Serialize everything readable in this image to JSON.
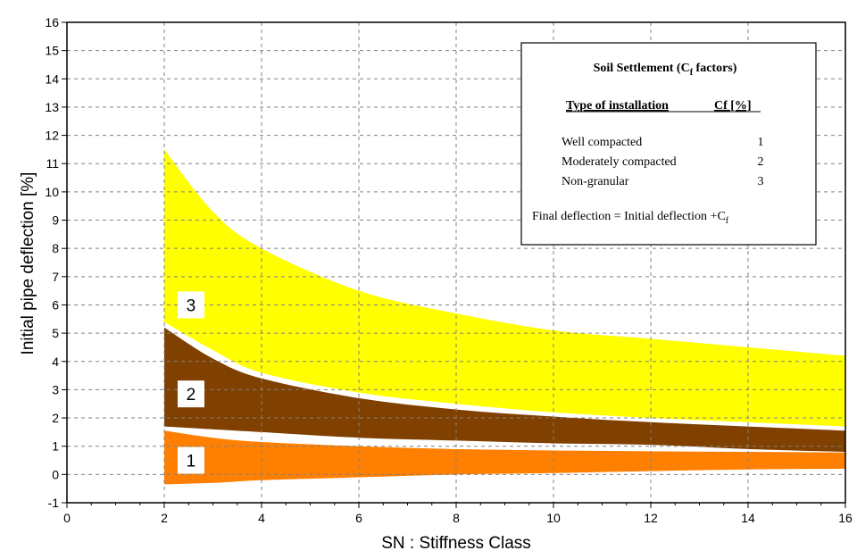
{
  "chart_data": {
    "type": "area",
    "xlabel": "SN : Stiffness Class",
    "ylabel": "Initial pipe deflection  [%]",
    "xlim": [
      0,
      16
    ],
    "ylim": [
      -1,
      16
    ],
    "x_ticks": [
      "0",
      "2",
      "4",
      "6",
      "8",
      "10",
      "12",
      "14",
      "16"
    ],
    "y_ticks": [
      "-1",
      "0",
      "1",
      "2",
      "3",
      "4",
      "5",
      "6",
      "7",
      "8",
      "9",
      "10",
      "11",
      "12",
      "13",
      "14",
      "15",
      "16"
    ],
    "grid": true,
    "x": [
      2,
      3,
      4,
      6,
      8,
      10,
      12,
      14,
      16
    ],
    "bands": [
      {
        "label": "1",
        "color": "#ff8000",
        "lower": [
          -0.35,
          -0.3,
          -0.2,
          -0.1,
          0.0,
          0.05,
          0.12,
          0.18,
          0.2
        ],
        "upper": [
          1.55,
          1.3,
          1.15,
          1.0,
          0.9,
          0.85,
          0.82,
          0.8,
          0.78
        ]
      },
      {
        "label": "2",
        "color": "#804000",
        "lower": [
          1.7,
          1.6,
          1.5,
          1.3,
          1.2,
          1.1,
          1.05,
          0.9,
          0.8
        ],
        "upper": [
          5.2,
          4.1,
          3.4,
          2.7,
          2.3,
          2.05,
          1.85,
          1.7,
          1.55
        ]
      },
      {
        "label": "3",
        "color": "#ffff00",
        "lower": [
          5.4,
          4.4,
          3.6,
          2.9,
          2.5,
          2.2,
          2.0,
          1.85,
          1.7
        ],
        "upper": [
          11.5,
          9.3,
          8.0,
          6.5,
          5.7,
          5.1,
          4.8,
          4.5,
          4.2
        ]
      }
    ],
    "band_label_positions_data": [
      {
        "label": "1",
        "x": 2.55,
        "y": 0.5
      },
      {
        "label": "2",
        "x": 2.55,
        "y": 2.85
      },
      {
        "label": "3",
        "x": 2.55,
        "y": 6.0
      }
    ]
  },
  "legend": {
    "title_main": "Soil Settlement (C",
    "title_sub": "f",
    "title_end": " factors)",
    "header_left": "Type of installation",
    "header_right": "Cf [%]",
    "rows": [
      {
        "name": "Well compacted",
        "value": "1"
      },
      {
        "name": "Moderately compacted",
        "value": "2"
      },
      {
        "name": "Non-granular",
        "value": "3"
      }
    ],
    "formula_main": "Final deflection = Initial  deflection +C",
    "formula_sub": "f"
  }
}
